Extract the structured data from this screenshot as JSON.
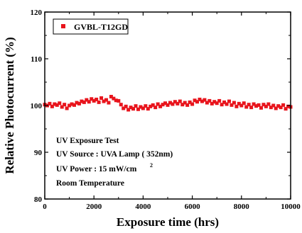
{
  "chart_data": {
    "type": "scatter",
    "title": "",
    "xlabel": "Exposure time (hrs)",
    "ylabel": "Relative Photocurrent (%)",
    "xlim": [
      0,
      10000
    ],
    "ylim": [
      80,
      120
    ],
    "x_ticks": [
      0,
      2000,
      4000,
      6000,
      8000,
      10000
    ],
    "y_ticks": [
      80,
      90,
      100,
      110,
      120
    ],
    "x_tick_labels": [
      "0",
      "2000",
      "4000",
      "6000",
      "8000",
      "10000"
    ],
    "y_tick_labels": [
      "80",
      "90",
      "100",
      "110",
      "120"
    ],
    "grid": false,
    "legend_position": "top-left",
    "series": [
      {
        "name": "GVBL-T12GD",
        "color": "#e8141c",
        "marker": "square",
        "x": [
          0,
          100,
          200,
          300,
          400,
          500,
          600,
          700,
          800,
          900,
          1000,
          1100,
          1200,
          1300,
          1400,
          1500,
          1600,
          1700,
          1800,
          1900,
          2000,
          2100,
          2200,
          2300,
          2400,
          2500,
          2600,
          2700,
          2800,
          2900,
          3000,
          3100,
          3200,
          3300,
          3400,
          3500,
          3600,
          3700,
          3800,
          3900,
          4000,
          4100,
          4200,
          4300,
          4400,
          4500,
          4600,
          4700,
          4800,
          4900,
          5000,
          5100,
          5200,
          5300,
          5400,
          5500,
          5600,
          5700,
          5800,
          5900,
          6000,
          6100,
          6200,
          6300,
          6400,
          6500,
          6600,
          6700,
          6800,
          6900,
          7000,
          7100,
          7200,
          7300,
          7400,
          7500,
          7600,
          7700,
          7800,
          7900,
          8000,
          8100,
          8200,
          8300,
          8400,
          8500,
          8600,
          8700,
          8800,
          8900,
          9000,
          9100,
          9200,
          9300,
          9400,
          9500,
          9600,
          9700,
          9800,
          9900,
          10000
        ],
        "y": [
          100.2,
          100.0,
          100.4,
          99.8,
          100.3,
          100.1,
          100.5,
          99.7,
          100.2,
          99.4,
          100.0,
          100.3,
          100.1,
          100.6,
          100.4,
          100.9,
          100.7,
          101.2,
          100.8,
          101.4,
          101.0,
          101.3,
          100.7,
          101.6,
          100.9,
          101.2,
          100.6,
          101.9,
          101.5,
          101.1,
          101.0,
          100.2,
          99.4,
          99.8,
          99.1,
          99.6,
          99.3,
          99.9,
          99.2,
          99.7,
          99.4,
          99.9,
          99.3,
          99.8,
          100.1,
          99.6,
          100.3,
          99.8,
          100.2,
          100.5,
          100.1,
          100.6,
          100.3,
          100.8,
          100.4,
          100.9,
          100.2,
          100.6,
          100.1,
          100.7,
          100.3,
          101.1,
          100.8,
          101.3,
          100.9,
          101.2,
          100.6,
          101.0,
          100.4,
          100.8,
          100.5,
          101.0,
          100.2,
          100.7,
          100.3,
          100.9,
          100.1,
          100.6,
          99.8,
          100.4,
          100.0,
          100.5,
          99.7,
          100.2,
          99.6,
          100.3,
          99.9,
          100.1,
          99.5,
          100.2,
          99.8,
          100.3,
          99.6,
          100.0,
          99.4,
          99.9,
          99.6,
          100.1,
          99.3,
          99.8,
          99.7
        ]
      }
    ],
    "annotations": [
      "UV Exposure Test",
      "UV Source : UVA Lamp ( 352nm)",
      "UV Power : 15 mW/cm",
      "2",
      "Room Temperature"
    ]
  }
}
